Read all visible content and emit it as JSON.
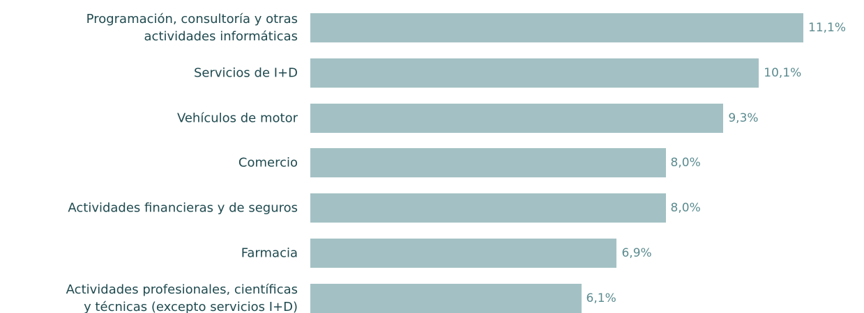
{
  "chart_data": {
    "type": "barh",
    "categories": [
      "Programación, consultoría y otras\nactividades informáticas",
      "Servicios de I+D",
      "Vehículos de motor",
      "Comercio",
      "Actividades financieras y de seguros",
      "Farmacia",
      "Actividades profesionales, científicas\ny técnicas (excepto servicios I+D)"
    ],
    "values": [
      11.1,
      10.1,
      9.3,
      8.0,
      8.0,
      6.9,
      6.1
    ],
    "value_labels": [
      "11,1%",
      "10,1%",
      "9,3%",
      "8,0%",
      "8,0%",
      "6,9%",
      "6,1%"
    ],
    "color": "#a3c1c4"
  }
}
